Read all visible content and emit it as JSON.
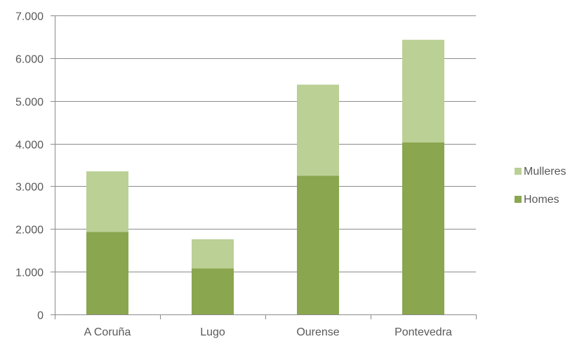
{
  "chart_data": {
    "type": "bar",
    "stacked": true,
    "categories": [
      "A Coruña",
      "Lugo",
      "Ourense",
      "Pontevedra"
    ],
    "series": [
      {
        "name": "Homes",
        "values": [
          1930,
          1080,
          3250,
          4030
        ],
        "color": "#8aa64e"
      },
      {
        "name": "Mulleres",
        "values": [
          1420,
          680,
          2130,
          2400
        ],
        "color": "#bad095"
      }
    ],
    "y_ticks": [
      "0",
      "1.000",
      "2.000",
      "3.000",
      "4.000",
      "5.000",
      "6.000",
      "7.000"
    ],
    "ylim": [
      0,
      7000
    ],
    "y_tick_step": 1000,
    "grid": true,
    "legend_position": "right",
    "legend_order": [
      "Mulleres",
      "Homes"
    ],
    "axis_color": "#8c8c8c",
    "grid_color": "#8c8c8c"
  }
}
